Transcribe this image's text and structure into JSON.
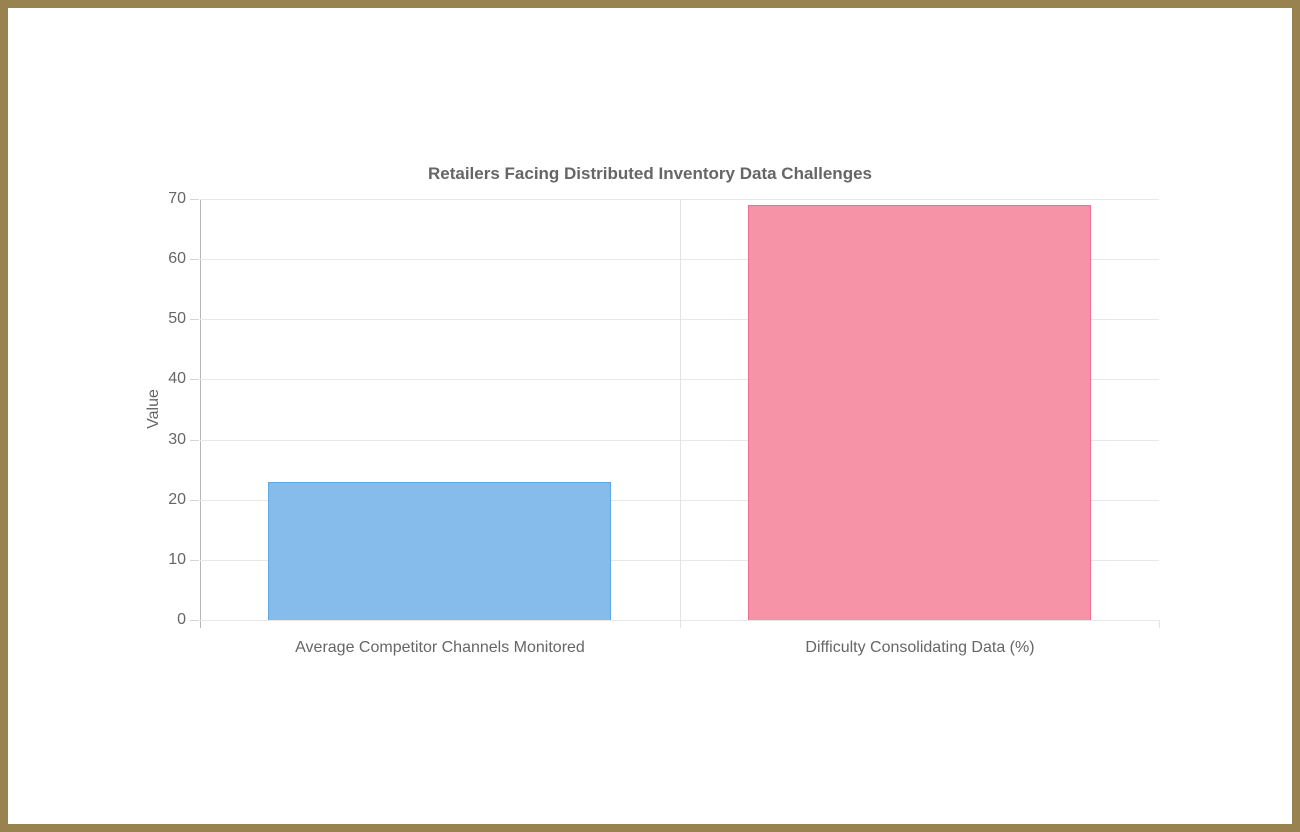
{
  "frame": {
    "border_color": "#98824F",
    "background": "#FFFFFF"
  },
  "chart_data": {
    "type": "bar",
    "title": "Retailers Facing Distributed Inventory Data Challenges",
    "xlabel": "",
    "ylabel": "Value",
    "categories": [
      "Average Competitor Channels Monitored",
      "Difficulty Consolidating Data (%)"
    ],
    "values": [
      23,
      69
    ],
    "ylim": [
      0,
      70
    ],
    "yticks": [
      0,
      10,
      20,
      30,
      40,
      50,
      60,
      70
    ],
    "grid": true,
    "legend": "none",
    "series_colors": [
      {
        "fill": "#85BCEB",
        "border": "#5FA8DF"
      },
      {
        "fill": "#F693A7",
        "border": "#EE6E95"
      }
    ],
    "text_color": "#666666",
    "gridline_color": "#E8E8E8",
    "axis_line_color": "#B5B5B5"
  }
}
